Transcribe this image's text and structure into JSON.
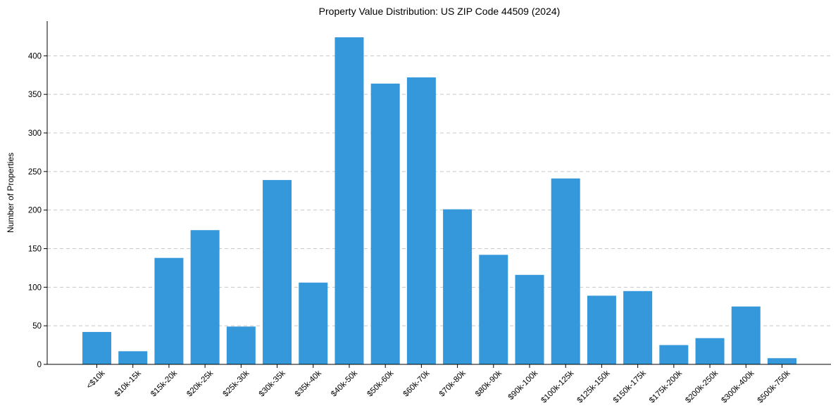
{
  "chart_data": {
    "type": "bar",
    "title": "Property Value Distribution: US ZIP Code 44509 (2024)",
    "xlabel": "",
    "ylabel": "Number of Properties",
    "ylim": [
      0,
      445
    ],
    "yticks": [
      0,
      50,
      100,
      150,
      200,
      250,
      300,
      350,
      400
    ],
    "grid": "horizontal dashed",
    "bar_color": "#3498db",
    "categories": [
      "<$10k",
      "$10k-15k",
      "$15k-20k",
      "$20k-25k",
      "$25k-30k",
      "$30k-35k",
      "$35k-40k",
      "$40k-50k",
      "$50k-60k",
      "$60k-70k",
      "$70k-80k",
      "$80k-90k",
      "$90k-100k",
      "$100k-125k",
      "$125k-150k",
      "$150k-175k",
      "$175k-200k",
      "$200k-250k",
      "$300k-400k",
      "$500k-750k"
    ],
    "values": [
      42,
      17,
      138,
      174,
      49,
      239,
      106,
      424,
      364,
      372,
      201,
      142,
      116,
      241,
      89,
      95,
      25,
      34,
      75,
      8
    ]
  }
}
